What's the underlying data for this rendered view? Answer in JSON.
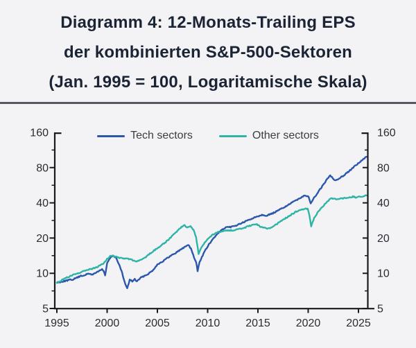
{
  "title": {
    "line1": "Diagramm 4: 12-Monats-Trailing EPS",
    "line2": "der kombinierten S&P-500-Sektoren",
    "line3": "(Jan. 1995 = 100, Logaritamische Skala)"
  },
  "colors": {
    "background": "#f3f3f6",
    "title_text": "#1b2434",
    "separator": "#565662",
    "axis": "#1a1a1a",
    "tick_label": "#2b2b33",
    "legend_text": "#3c3c44"
  },
  "chart_data": {
    "type": "line",
    "title": "12-Monats-Trailing EPS der kombinierten S&P-500-Sektoren (Jan. 1995 = 100, log. Skala)",
    "y_scale": "log",
    "ylim": [
      5,
      160
    ],
    "xlim": [
      1995,
      2026.6
    ],
    "y_ticks": [
      160,
      80,
      40,
      20,
      10,
      5
    ],
    "y_axis_sides": [
      "left",
      "right"
    ],
    "x_ticks": [
      1995,
      2000,
      2005,
      2010,
      2015,
      2020,
      2025
    ],
    "grid": false,
    "legend_position": "top-center",
    "series": [
      {
        "name": "Tech sectors",
        "color": "#2a56ac",
        "points": [
          [
            1995.0,
            8.3
          ],
          [
            1995.4,
            8.45
          ],
          [
            1995.8,
            8.6
          ],
          [
            1996.2,
            8.75
          ],
          [
            1996.6,
            8.85
          ],
          [
            1997.0,
            9.2
          ],
          [
            1997.4,
            9.45
          ],
          [
            1997.8,
            9.7
          ],
          [
            1998.2,
            9.9
          ],
          [
            1998.5,
            9.75
          ],
          [
            1998.8,
            10.0
          ],
          [
            1999.2,
            10.5
          ],
          [
            1999.5,
            10.85
          ],
          [
            1999.65,
            10.4
          ],
          [
            1999.8,
            9.6
          ],
          [
            2000.0,
            12.2
          ],
          [
            2000.3,
            13.5
          ],
          [
            2000.6,
            14.2
          ],
          [
            2000.9,
            13.5
          ],
          [
            2001.2,
            11.8
          ],
          [
            2001.5,
            10.0
          ],
          [
            2001.8,
            8.1
          ],
          [
            2002.0,
            7.4
          ],
          [
            2002.25,
            8.8
          ],
          [
            2002.5,
            8.55
          ],
          [
            2002.75,
            8.9
          ],
          [
            2002.95,
            8.5
          ],
          [
            2003.3,
            9.1
          ],
          [
            2003.7,
            9.5
          ],
          [
            2004.1,
            9.9
          ],
          [
            2004.5,
            10.5
          ],
          [
            2005.0,
            11.9
          ],
          [
            2005.5,
            12.6
          ],
          [
            2006.0,
            13.5
          ],
          [
            2006.5,
            14.4
          ],
          [
            2007.0,
            15.3
          ],
          [
            2007.5,
            16.3
          ],
          [
            2008.1,
            17.6
          ],
          [
            2008.4,
            15.8
          ],
          [
            2008.65,
            13.6
          ],
          [
            2008.85,
            12.5
          ],
          [
            2009.0,
            10.5
          ],
          [
            2009.2,
            12.5
          ],
          [
            2009.5,
            14.2
          ],
          [
            2009.8,
            15.9
          ],
          [
            2010.2,
            18.0
          ],
          [
            2010.6,
            19.9
          ],
          [
            2011.0,
            21.9
          ],
          [
            2011.4,
            23.4
          ],
          [
            2011.8,
            24.5
          ],
          [
            2012.2,
            24.8
          ],
          [
            2012.6,
            25.2
          ],
          [
            2013.0,
            26.0
          ],
          [
            2013.5,
            27.1
          ],
          [
            2014.0,
            28.3
          ],
          [
            2014.5,
            29.6
          ],
          [
            2015.0,
            30.8
          ],
          [
            2015.4,
            31.6
          ],
          [
            2015.9,
            31.2
          ],
          [
            2016.4,
            32.3
          ],
          [
            2017.0,
            34.3
          ],
          [
            2017.5,
            36.3
          ],
          [
            2018.0,
            38.3
          ],
          [
            2018.5,
            40.6
          ],
          [
            2019.0,
            43.2
          ],
          [
            2019.4,
            45.2
          ],
          [
            2019.8,
            46.2
          ],
          [
            2020.05,
            44.6
          ],
          [
            2020.25,
            39.8
          ],
          [
            2020.5,
            43.0
          ],
          [
            2020.8,
            46.6
          ],
          [
            2021.1,
            51.0
          ],
          [
            2021.4,
            55.5
          ],
          [
            2021.7,
            60.5
          ],
          [
            2022.0,
            65.5
          ],
          [
            2022.2,
            68.8
          ],
          [
            2022.45,
            65.0
          ],
          [
            2022.7,
            62.5
          ],
          [
            2023.0,
            64.0
          ],
          [
            2023.3,
            66.5
          ],
          [
            2023.6,
            69.5
          ],
          [
            2024.0,
            74.0
          ],
          [
            2024.4,
            79.0
          ],
          [
            2024.8,
            84.5
          ],
          [
            2025.2,
            90.0
          ],
          [
            2025.5,
            94.5
          ],
          [
            2025.8,
            99.0
          ]
        ]
      },
      {
        "name": "Other sectors",
        "color": "#2eb4a6",
        "points": [
          [
            1995.0,
            8.3
          ],
          [
            1995.5,
            8.75
          ],
          [
            1996.0,
            9.2
          ],
          [
            1996.5,
            9.6
          ],
          [
            1997.0,
            9.95
          ],
          [
            1997.5,
            10.3
          ],
          [
            1998.0,
            10.6
          ],
          [
            1998.5,
            10.95
          ],
          [
            1999.0,
            11.3
          ],
          [
            1999.5,
            11.9
          ],
          [
            2000.0,
            13.2
          ],
          [
            2000.4,
            14.2
          ],
          [
            2000.8,
            13.9
          ],
          [
            2001.2,
            13.6
          ],
          [
            2001.6,
            13.4
          ],
          [
            2002.0,
            13.3
          ],
          [
            2002.4,
            13.1
          ],
          [
            2002.9,
            12.6
          ],
          [
            2003.3,
            12.9
          ],
          [
            2003.7,
            13.5
          ],
          [
            2004.1,
            14.3
          ],
          [
            2004.5,
            15.3
          ],
          [
            2005.0,
            16.4
          ],
          [
            2005.5,
            17.6
          ],
          [
            2006.0,
            19.0
          ],
          [
            2006.5,
            21.0
          ],
          [
            2007.0,
            23.1
          ],
          [
            2007.4,
            24.9
          ],
          [
            2007.7,
            25.6
          ],
          [
            2008.0,
            24.7
          ],
          [
            2008.3,
            25.1
          ],
          [
            2008.6,
            23.5
          ],
          [
            2008.85,
            20.5
          ],
          [
            2009.1,
            14.7
          ],
          [
            2009.4,
            16.6
          ],
          [
            2009.7,
            18.3
          ],
          [
            2010.0,
            19.8
          ],
          [
            2010.5,
            21.3
          ],
          [
            2011.0,
            22.4
          ],
          [
            2011.5,
            23.0
          ],
          [
            2012.0,
            23.2
          ],
          [
            2012.5,
            23.3
          ],
          [
            2013.0,
            23.8
          ],
          [
            2013.5,
            24.3
          ],
          [
            2014.0,
            25.1
          ],
          [
            2014.5,
            26.0
          ],
          [
            2014.9,
            26.3
          ],
          [
            2015.2,
            25.0
          ],
          [
            2015.6,
            24.6
          ],
          [
            2016.1,
            24.1
          ],
          [
            2016.6,
            25.3
          ],
          [
            2017.1,
            27.2
          ],
          [
            2017.6,
            29.0
          ],
          [
            2018.1,
            30.8
          ],
          [
            2018.6,
            32.9
          ],
          [
            2019.1,
            34.8
          ],
          [
            2019.6,
            35.3
          ],
          [
            2019.95,
            35.8
          ],
          [
            2020.1,
            32.0
          ],
          [
            2020.3,
            25.2
          ],
          [
            2020.6,
            29.8
          ],
          [
            2021.0,
            33.8
          ],
          [
            2021.4,
            37.0
          ],
          [
            2021.8,
            40.0
          ],
          [
            2022.1,
            42.8
          ],
          [
            2022.35,
            44.0
          ],
          [
            2022.6,
            43.2
          ],
          [
            2022.9,
            43.0
          ],
          [
            2023.3,
            43.6
          ],
          [
            2023.7,
            44.0
          ],
          [
            2024.1,
            44.4
          ],
          [
            2024.45,
            45.1
          ],
          [
            2024.75,
            44.5
          ],
          [
            2025.1,
            45.0
          ],
          [
            2025.45,
            45.7
          ],
          [
            2025.8,
            46.3
          ]
        ]
      }
    ]
  }
}
